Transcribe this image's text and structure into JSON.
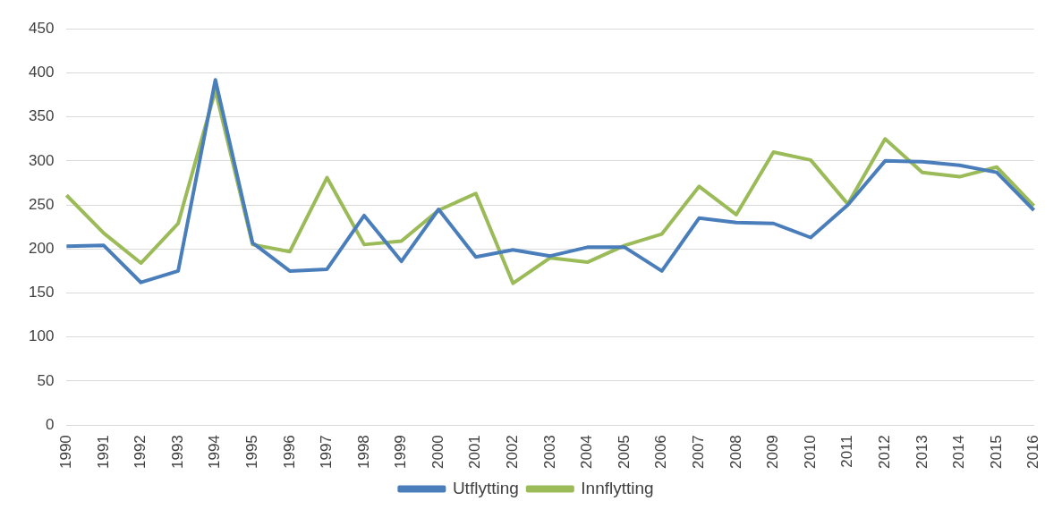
{
  "chart_data": {
    "type": "line",
    "categories": [
      "1990",
      "1991",
      "1992",
      "1993",
      "1994",
      "1995",
      "1996",
      "1997",
      "1998",
      "1999",
      "2000",
      "2001",
      "2002",
      "2003",
      "2004",
      "2005",
      "2006",
      "2007",
      "2008",
      "2009",
      "2010",
      "2011",
      "2012",
      "2013",
      "2014",
      "2015",
      "2016"
    ],
    "series": [
      {
        "name": "Utflytting",
        "color": "#4a7ebb",
        "values": [
          203,
          204,
          162,
          175,
          392,
          207,
          175,
          177,
          238,
          186,
          245,
          191,
          199,
          192,
          202,
          202,
          175,
          235,
          230,
          229,
          213,
          250,
          300,
          299,
          295,
          287,
          244
        ]
      },
      {
        "name": "Innflytting",
        "color": "#9bbb59",
        "values": [
          261,
          218,
          184,
          229,
          380,
          205,
          197,
          281,
          205,
          209,
          244,
          263,
          161,
          190,
          185,
          204,
          217,
          271,
          239,
          310,
          301,
          251,
          325,
          287,
          282,
          293,
          249
        ]
      }
    ],
    "ylim": [
      0,
      450
    ],
    "yticks": [
      0,
      50,
      100,
      150,
      200,
      250,
      300,
      350,
      400,
      450
    ],
    "grid": "y",
    "legend": "bottom",
    "marker": "none",
    "line_style": "solid"
  }
}
